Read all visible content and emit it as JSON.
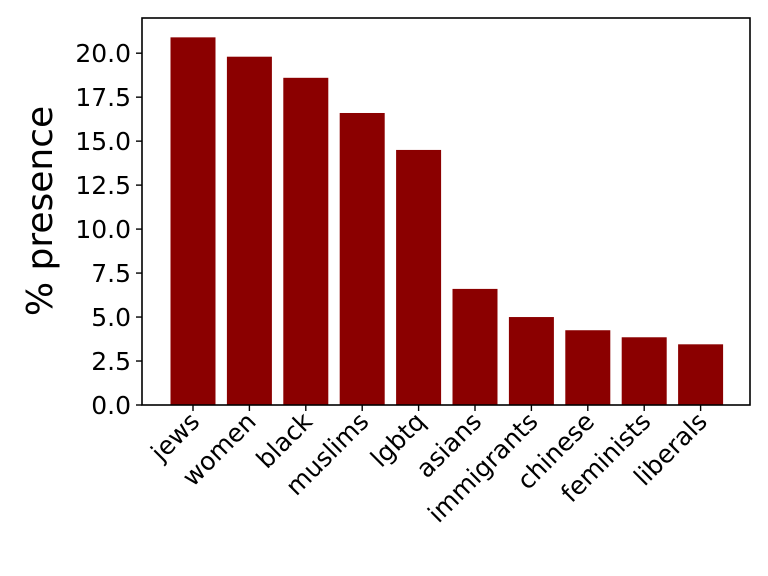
{
  "chart_data": {
    "type": "bar",
    "categories": [
      "jews",
      "women",
      "black",
      "muslims",
      "lgbtq",
      "asians",
      "immigrants",
      "chinese",
      "feminists",
      "liberals"
    ],
    "values": [
      20.9,
      19.8,
      18.6,
      16.6,
      14.5,
      6.6,
      5.0,
      4.25,
      3.85,
      3.45
    ],
    "title": "",
    "xlabel": "",
    "ylabel": "% presence",
    "ylim": [
      0,
      22
    ],
    "yticks": [
      "0.0",
      "2.5",
      "5.0",
      "7.5",
      "10.0",
      "12.5",
      "15.0",
      "17.5",
      "20.0"
    ],
    "grid": false,
    "bar_color": "#8b0000"
  }
}
